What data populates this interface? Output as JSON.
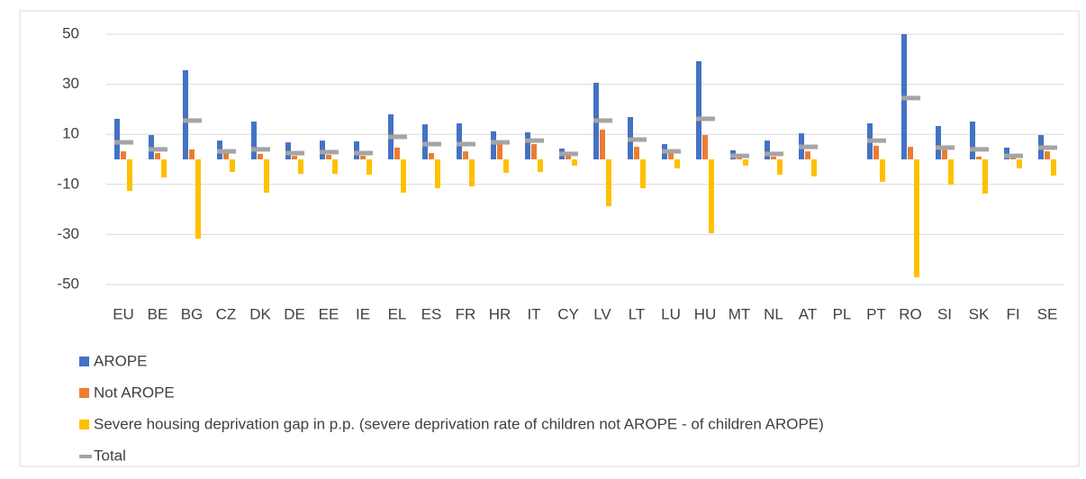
{
  "chart_data": {
    "type": "bar",
    "categories": [
      "EU",
      "BE",
      "BG",
      "CZ",
      "DK",
      "DE",
      "EE",
      "IE",
      "EL",
      "ES",
      "FR",
      "HR",
      "IT",
      "CY",
      "LV",
      "LT",
      "LU",
      "HU",
      "MT",
      "NL",
      "AT",
      "PL",
      "PT",
      "RO",
      "SI",
      "SK",
      "FI",
      "SE"
    ],
    "series": [
      {
        "name": "AROPE",
        "color": "#4472c4",
        "style": "bar",
        "values": [
          16.2,
          9.7,
          35.6,
          7.5,
          15.1,
          6.8,
          7.5,
          7.2,
          18,
          14,
          14.4,
          11.2,
          10.8,
          4.3,
          30.6,
          16.9,
          6.1,
          39.2,
          3.6,
          7.5,
          10.4,
          null,
          14.4,
          50,
          13.3,
          15.1,
          4.7,
          9.7
        ]
      },
      {
        "name": "Not AROPE",
        "color": "#ed7d31",
        "style": "bar",
        "values": [
          3.2,
          2.5,
          4,
          2.5,
          2.2,
          1.4,
          1.8,
          1.4,
          4.7,
          2.5,
          3.2,
          6.1,
          6.1,
          1.4,
          11.9,
          5,
          2.5,
          9.7,
          1.1,
          1.1,
          3.2,
          null,
          5.4,
          5,
          4,
          1.1,
          0.7,
          3.2
        ]
      },
      {
        "name": "Severe housing deprivation gap in p.p. (severe deprivation rate of children not AROPE - of children AROPE)",
        "color": "#ffc000",
        "style": "bar",
        "values": [
          -12.6,
          -7.2,
          -31.7,
          -5,
          -13.3,
          -5.8,
          -5.8,
          -6.1,
          -13.3,
          -11.5,
          -10.8,
          -5.4,
          -5,
          -2.5,
          -18.7,
          -11.5,
          -3.6,
          -29.5,
          -2.5,
          -6.1,
          -6.8,
          null,
          -9,
          -47.1,
          -10.1,
          -13.7,
          -3.6,
          -6.5
        ]
      },
      {
        "name": "Total",
        "color": "#a5a5a5",
        "style": "dash",
        "values": [
          6.8,
          4,
          15.5,
          3.2,
          4,
          2.5,
          2.9,
          2.5,
          9,
          6.1,
          6.1,
          6.8,
          7.5,
          2.2,
          15.5,
          7.9,
          3.2,
          16.2,
          1.4,
          2.2,
          5,
          null,
          7.5,
          24.5,
          4.7,
          4,
          1.4,
          4.7
        ]
      }
    ],
    "ylim": [
      -50,
      50
    ],
    "yticks": [
      -50,
      -30,
      -10,
      10,
      30,
      50
    ],
    "grid": true,
    "legend": "bottom-left"
  }
}
